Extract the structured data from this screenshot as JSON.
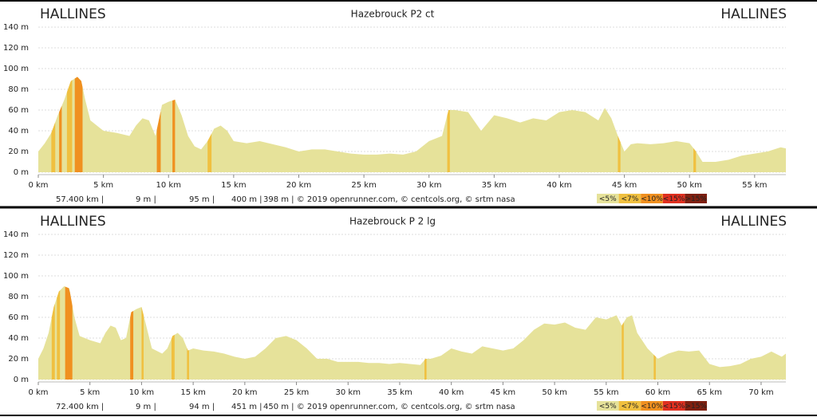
{
  "chart_data": [
    {
      "type": "area",
      "title": "Hazebrouck P2 ct",
      "left_label": "HALLINES",
      "right_label": "HALLINES",
      "color": "#e6e29a",
      "grid": true,
      "x": [
        0,
        0.5,
        1,
        1.5,
        2,
        2.5,
        3,
        3.3,
        3.6,
        4,
        5,
        6,
        7,
        7.5,
        8,
        8.5,
        9,
        9.5,
        10,
        10.5,
        11,
        11.5,
        12,
        12.5,
        13,
        13.5,
        14,
        14.5,
        15,
        16,
        17,
        18,
        19,
        20,
        21,
        22,
        23,
        24,
        25,
        26,
        27,
        28,
        29,
        30,
        31,
        31.5,
        32,
        33,
        34,
        35,
        36,
        37,
        38,
        39,
        40,
        41,
        42,
        43,
        43.5,
        44,
        44.5,
        45,
        45.5,
        46,
        47,
        48,
        49,
        50,
        50.5,
        51,
        52,
        53,
        54,
        55,
        56,
        57,
        57.4
      ],
      "values": [
        20,
        28,
        38,
        55,
        70,
        88,
        92,
        88,
        70,
        50,
        40,
        38,
        35,
        45,
        52,
        50,
        35,
        65,
        68,
        70,
        55,
        35,
        25,
        22,
        30,
        42,
        45,
        40,
        30,
        28,
        30,
        27,
        24,
        20,
        22,
        22,
        20,
        18,
        17,
        17,
        18,
        17,
        20,
        30,
        35,
        60,
        60,
        58,
        40,
        55,
        52,
        48,
        52,
        50,
        58,
        60,
        58,
        50,
        62,
        52,
        35,
        20,
        27,
        28,
        27,
        28,
        30,
        28,
        20,
        10,
        10,
        12,
        16,
        18,
        20,
        24,
        23
      ],
      "xlim": [
        0,
        57.4
      ],
      "ylim": [
        0,
        140
      ],
      "xticks": [
        {
          "value": 0,
          "label": "0 km"
        },
        {
          "value": 5,
          "label": "5 km"
        },
        {
          "value": 10,
          "label": "10 km"
        },
        {
          "value": 15,
          "label": "15 km"
        },
        {
          "value": 20,
          "label": "20 km"
        },
        {
          "value": 25,
          "label": "25 km"
        },
        {
          "value": 30,
          "label": "30 km"
        },
        {
          "value": 35,
          "label": "35 km"
        },
        {
          "value": 40,
          "label": "40 km"
        },
        {
          "value": 45,
          "label": "45 km"
        },
        {
          "value": 50,
          "label": "50 km"
        },
        {
          "value": 55,
          "label": "55 km"
        }
      ],
      "yticks": [
        {
          "value": 0,
          "label": "0 m"
        },
        {
          "value": 20,
          "label": "20 m"
        },
        {
          "value": 40,
          "label": "40 m"
        },
        {
          "value": 60,
          "label": "60 m"
        },
        {
          "value": 80,
          "label": "80 m"
        },
        {
          "value": 100,
          "label": "100 m"
        },
        {
          "value": 120,
          "label": "120 m"
        },
        {
          "value": 140,
          "label": "140 m"
        }
      ],
      "footer": [
        "57.400 km |",
        "9 m |",
        "95 m |",
        "400 m |",
        "398 m | © 2019 openrunner.com, © centcols.org, © srtm nasa"
      ],
      "legend": [
        {
          "label": "<5%",
          "color": "#e6e29a"
        },
        {
          "label": "<7%",
          "color": "#f0c040"
        },
        {
          "label": "<10%",
          "color": "#f09020"
        },
        {
          "label": "<15%",
          "color": "#e03020"
        },
        {
          "label": ">15%",
          "color": "#802010"
        }
      ],
      "steep": [
        {
          "from": 1.0,
          "to": 1.3,
          "color": "#f0c040"
        },
        {
          "from": 1.6,
          "to": 1.8,
          "color": "#f09020"
        },
        {
          "from": 2.2,
          "to": 2.6,
          "color": "#f0c040"
        },
        {
          "from": 2.8,
          "to": 3.4,
          "color": "#f09020"
        },
        {
          "from": 9.1,
          "to": 9.4,
          "color": "#f09020"
        },
        {
          "from": 10.3,
          "to": 10.5,
          "color": "#f09020"
        },
        {
          "from": 13.0,
          "to": 13.3,
          "color": "#f0c040"
        },
        {
          "from": 31.4,
          "to": 31.6,
          "color": "#f0c040"
        },
        {
          "from": 44.5,
          "to": 44.7,
          "color": "#f0c040"
        },
        {
          "from": 50.3,
          "to": 50.5,
          "color": "#f0c040"
        }
      ]
    },
    {
      "type": "area",
      "title": "Hazebrouck P 2 lg",
      "left_label": "HALLINES",
      "right_label": "HALLINES",
      "color": "#e6e29a",
      "grid": true,
      "x": [
        0,
        0.5,
        1,
        1.5,
        2,
        2.5,
        3,
        3.5,
        4,
        5,
        6,
        6.5,
        7,
        7.5,
        8,
        8.5,
        9,
        9.5,
        10,
        10.5,
        11,
        12,
        12.5,
        13,
        13.5,
        14,
        14.5,
        15,
        16,
        17,
        18,
        19,
        20,
        21,
        22,
        23,
        24,
        25,
        26,
        27,
        28,
        29,
        30,
        31,
        32,
        33,
        34,
        35,
        36,
        37,
        37.5,
        38,
        39,
        40,
        41,
        42,
        43,
        44,
        45,
        46,
        47,
        48,
        49,
        50,
        51,
        52,
        53,
        54,
        55,
        56,
        56.5,
        57,
        57.5,
        58,
        59,
        60,
        61,
        62,
        63,
        64,
        65,
        66,
        67,
        68,
        69,
        70,
        71,
        72,
        72.4
      ],
      "values": [
        20,
        30,
        45,
        70,
        85,
        90,
        88,
        60,
        42,
        38,
        35,
        45,
        52,
        50,
        38,
        40,
        65,
        68,
        70,
        50,
        30,
        25,
        30,
        42,
        45,
        40,
        28,
        30,
        28,
        27,
        25,
        22,
        20,
        22,
        30,
        40,
        42,
        38,
        30,
        20,
        20,
        17,
        17,
        17,
        16,
        16,
        15,
        16,
        15,
        14,
        20,
        20,
        23,
        30,
        27,
        25,
        32,
        30,
        28,
        30,
        38,
        48,
        54,
        53,
        55,
        50,
        48,
        60,
        58,
        62,
        52,
        60,
        62,
        45,
        30,
        20,
        25,
        28,
        27,
        28,
        15,
        12,
        13,
        15,
        20,
        22,
        27,
        22,
        25
      ],
      "xlim": [
        0,
        72.4
      ],
      "ylim": [
        0,
        140
      ],
      "xticks": [
        {
          "value": 0,
          "label": "0 km"
        },
        {
          "value": 5,
          "label": "5 km"
        },
        {
          "value": 10,
          "label": "10 km"
        },
        {
          "value": 15,
          "label": "15 km"
        },
        {
          "value": 20,
          "label": "20 km"
        },
        {
          "value": 25,
          "label": "25 km"
        },
        {
          "value": 30,
          "label": "30 km"
        },
        {
          "value": 35,
          "label": "35 km"
        },
        {
          "value": 40,
          "label": "40 km"
        },
        {
          "value": 45,
          "label": "45 km"
        },
        {
          "value": 50,
          "label": "50 km"
        },
        {
          "value": 55,
          "label": "55 km"
        },
        {
          "value": 60,
          "label": "60 km"
        },
        {
          "value": 65,
          "label": "65 km"
        },
        {
          "value": 70,
          "label": "70 km"
        }
      ],
      "yticks": [
        {
          "value": 0,
          "label": "0 m"
        },
        {
          "value": 20,
          "label": "20 m"
        },
        {
          "value": 40,
          "label": "40 m"
        },
        {
          "value": 60,
          "label": "60 m"
        },
        {
          "value": 80,
          "label": "80 m"
        },
        {
          "value": 100,
          "label": "100 m"
        },
        {
          "value": 120,
          "label": "120 m"
        },
        {
          "value": 140,
          "label": "140 m"
        }
      ],
      "footer": [
        "72.400 km |",
        "9 m |",
        "94 m |",
        "451 m |",
        "450 m | © 2019 openrunner.com, © centcols.org, © srtm nasa"
      ],
      "legend": [
        {
          "label": "<5%",
          "color": "#e6e29a"
        },
        {
          "label": "<7%",
          "color": "#f0c040"
        },
        {
          "label": "<10%",
          "color": "#f09020"
        },
        {
          "label": "<15%",
          "color": "#e03020"
        },
        {
          "label": ">15%",
          "color": "#802010"
        }
      ],
      "steep": [
        {
          "from": 1.3,
          "to": 1.6,
          "color": "#f0c040"
        },
        {
          "from": 1.8,
          "to": 2.1,
          "color": "#f0c040"
        },
        {
          "from": 2.6,
          "to": 3.3,
          "color": "#f09020"
        },
        {
          "from": 8.9,
          "to": 9.2,
          "color": "#f09020"
        },
        {
          "from": 10.0,
          "to": 10.2,
          "color": "#f0c040"
        },
        {
          "from": 12.9,
          "to": 13.2,
          "color": "#f0c040"
        },
        {
          "from": 14.4,
          "to": 14.6,
          "color": "#f0c040"
        },
        {
          "from": 37.4,
          "to": 37.6,
          "color": "#f0c040"
        },
        {
          "from": 56.5,
          "to": 56.7,
          "color": "#f0c040"
        },
        {
          "from": 59.6,
          "to": 59.8,
          "color": "#f0c040"
        }
      ]
    }
  ]
}
